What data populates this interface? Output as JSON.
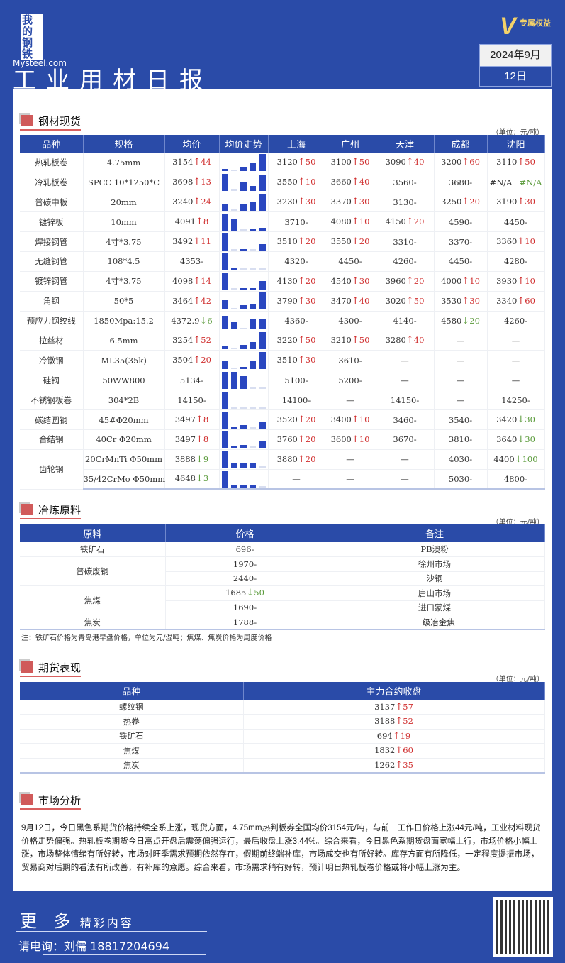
{
  "header": {
    "logo_cn": "我的钢铁",
    "logo_en": "Mysteel.com",
    "vip": "专属权益",
    "title": "工业用材日报",
    "month": "2024年9月",
    "day": "12日"
  },
  "colors": {
    "brand": "#2a4ba8",
    "up": "#d03030",
    "down": "#5a9a3a",
    "bar": "#2a47c0"
  },
  "steel": {
    "title": "钢材现货",
    "unit": "（单位：元/吨）",
    "headers": [
      "品种",
      "规格",
      "均价",
      "均价走势",
      "上海",
      "广州",
      "天津",
      "成都",
      "沈阳"
    ],
    "rows": [
      {
        "name": "热轧板卷",
        "spec": "4.75mm",
        "avg": {
          "v": "3154",
          "dir": "up",
          "d": "44"
        },
        "trend": [
          0.12,
          0.03,
          0.22,
          0.45,
          1
        ],
        "cities": [
          {
            "v": "3120",
            "dir": "up",
            "d": "50"
          },
          {
            "v": "3100",
            "dir": "up",
            "d": "50"
          },
          {
            "v": "3090",
            "dir": "up",
            "d": "40"
          },
          {
            "v": "3200",
            "dir": "up",
            "d": "60"
          },
          {
            "v": "3110",
            "dir": "up",
            "d": "50"
          }
        ]
      },
      {
        "name": "冷轧板卷",
        "spec": "SPCC 10*1250*C",
        "avg": {
          "v": "3698",
          "dir": "up",
          "d": "13"
        },
        "trend": [
          1,
          0.03,
          0.55,
          0.3,
          0.9
        ],
        "cities": [
          {
            "v": "3550",
            "dir": "up",
            "d": "10"
          },
          {
            "v": "3660",
            "dir": "up",
            "d": "40"
          },
          {
            "v": "3560",
            "dir": "flat",
            "d": "-"
          },
          {
            "v": "3680",
            "dir": "flat",
            "d": "-"
          },
          {
            "v": "#N/A",
            "dir": "na",
            "d": "#N/A"
          }
        ]
      },
      {
        "name": "普碳中板",
        "spec": "20mm",
        "avg": {
          "v": "3240",
          "dir": "up",
          "d": "24"
        },
        "trend": [
          0.35,
          0.03,
          0.35,
          0.5,
          1
        ],
        "cities": [
          {
            "v": "3230",
            "dir": "up",
            "d": "30"
          },
          {
            "v": "3370",
            "dir": "up",
            "d": "30"
          },
          {
            "v": "3130",
            "dir": "flat",
            "d": "-"
          },
          {
            "v": "3250",
            "dir": "up",
            "d": "20"
          },
          {
            "v": "3190",
            "dir": "up",
            "d": "30"
          }
        ]
      },
      {
        "name": "镀锌板",
        "spec": "10mm",
        "avg": {
          "v": "4091",
          "dir": "up",
          "d": "8"
        },
        "trend": [
          1,
          0.65,
          0.03,
          0.05,
          0.15
        ],
        "cities": [
          {
            "v": "3710",
            "dir": "flat",
            "d": "-"
          },
          {
            "v": "4080",
            "dir": "up",
            "d": "10"
          },
          {
            "v": "4150",
            "dir": "up",
            "d": "20"
          },
          {
            "v": "4590",
            "dir": "flat",
            "d": "-"
          },
          {
            "v": "4450",
            "dir": "flat",
            "d": "-"
          }
        ]
      },
      {
        "name": "焊接钢管",
        "spec": "4寸*3.75",
        "avg": {
          "v": "3492",
          "dir": "up",
          "d": "11"
        },
        "trend": [
          1,
          0.03,
          0.06,
          0.03,
          0.35
        ],
        "cities": [
          {
            "v": "3510",
            "dir": "up",
            "d": "20"
          },
          {
            "v": "3550",
            "dir": "up",
            "d": "20"
          },
          {
            "v": "3310",
            "dir": "flat",
            "d": "-"
          },
          {
            "v": "3370",
            "dir": "flat",
            "d": "-"
          },
          {
            "v": "3360",
            "dir": "up",
            "d": "10"
          }
        ]
      },
      {
        "name": "无缝钢管",
        "spec": "108*4.5",
        "avg": {
          "v": "4353",
          "dir": "flat",
          "d": "-"
        },
        "trend": [
          1,
          0.12,
          0.03,
          0.03,
          0.03
        ],
        "cities": [
          {
            "v": "4320",
            "dir": "flat",
            "d": "-"
          },
          {
            "v": "4450",
            "dir": "flat",
            "d": "-"
          },
          {
            "v": "4260",
            "dir": "flat",
            "d": "-"
          },
          {
            "v": "4450",
            "dir": "flat",
            "d": "-"
          },
          {
            "v": "4280",
            "dir": "flat",
            "d": "-"
          }
        ]
      },
      {
        "name": "镀锌钢管",
        "spec": "4寸*3.75",
        "avg": {
          "v": "4098",
          "dir": "up",
          "d": "14"
        },
        "trend": [
          1,
          0.03,
          0.08,
          0.1,
          0.5
        ],
        "cities": [
          {
            "v": "4130",
            "dir": "up",
            "d": "20"
          },
          {
            "v": "4540",
            "dir": "up",
            "d": "30"
          },
          {
            "v": "3960",
            "dir": "up",
            "d": "20"
          },
          {
            "v": "4000",
            "dir": "up",
            "d": "10"
          },
          {
            "v": "3930",
            "dir": "up",
            "d": "10"
          }
        ]
      },
      {
        "name": "角钢",
        "spec": "50*5",
        "avg": {
          "v": "3464",
          "dir": "up",
          "d": "42"
        },
        "trend": [
          0.55,
          0.03,
          0.25,
          0.3,
          1
        ],
        "cities": [
          {
            "v": "3790",
            "dir": "up",
            "d": "30"
          },
          {
            "v": "3470",
            "dir": "up",
            "d": "40"
          },
          {
            "v": "3020",
            "dir": "up",
            "d": "50"
          },
          {
            "v": "3530",
            "dir": "up",
            "d": "30"
          },
          {
            "v": "3340",
            "dir": "up",
            "d": "60"
          }
        ]
      },
      {
        "name": "预应力钢绞线",
        "spec": "1850Mpa:15.2",
        "avg": {
          "v": "4372.9",
          "dir": "down",
          "d": "6"
        },
        "trend": [
          0.8,
          0.4,
          0.03,
          0.6,
          0.6
        ],
        "cities": [
          {
            "v": "4360",
            "dir": "flat",
            "d": "-"
          },
          {
            "v": "4300",
            "dir": "flat",
            "d": "-"
          },
          {
            "v": "4140",
            "dir": "flat",
            "d": "-"
          },
          {
            "v": "4580",
            "dir": "down",
            "d": "20"
          },
          {
            "v": "4260",
            "dir": "flat",
            "d": "-"
          }
        ]
      },
      {
        "name": "拉丝材",
        "spec": "6.5mm",
        "avg": {
          "v": "3254",
          "dir": "up",
          "d": "52"
        },
        "trend": [
          0.15,
          0.03,
          0.25,
          0.42,
          1
        ],
        "cities": [
          {
            "v": "3220",
            "dir": "up",
            "d": "50"
          },
          {
            "v": "3210",
            "dir": "up",
            "d": "50"
          },
          {
            "v": "3280",
            "dir": "up",
            "d": "40"
          },
          {
            "v": "—",
            "dir": "none",
            "d": ""
          },
          {
            "v": "—",
            "dir": "none",
            "d": ""
          }
        ]
      },
      {
        "name": "冷镦钢",
        "spec": "ML35(35k)",
        "avg": {
          "v": "3504",
          "dir": "up",
          "d": "20"
        },
        "trend": [
          0.45,
          0.03,
          0.1,
          0.45,
          1
        ],
        "cities": [
          {
            "v": "3510",
            "dir": "up",
            "d": "30"
          },
          {
            "v": "3610",
            "dir": "flat",
            "d": "-"
          },
          {
            "v": "—",
            "dir": "none",
            "d": ""
          },
          {
            "v": "—",
            "dir": "none",
            "d": ""
          },
          {
            "v": "—",
            "dir": "none",
            "d": ""
          }
        ]
      },
      {
        "name": "硅钢",
        "spec": "50WW800",
        "avg": {
          "v": "5134",
          "dir": "flat",
          "d": "-"
        },
        "trend": [
          1,
          1,
          0.72,
          0.03,
          0.03
        ],
        "cities": [
          {
            "v": "5100",
            "dir": "flat",
            "d": "-"
          },
          {
            "v": "5200",
            "dir": "flat",
            "d": "-"
          },
          {
            "v": "—",
            "dir": "none",
            "d": ""
          },
          {
            "v": "—",
            "dir": "none",
            "d": ""
          },
          {
            "v": "—",
            "dir": "none",
            "d": ""
          }
        ]
      },
      {
        "name": "不锈钢板卷",
        "spec": "304*2B",
        "avg": {
          "v": "14150",
          "dir": "flat",
          "d": "-"
        },
        "trend": [
          1,
          0.03,
          0.03,
          0.03,
          0.03
        ],
        "cities": [
          {
            "v": "14100",
            "dir": "flat",
            "d": "-"
          },
          {
            "v": "—",
            "dir": "none",
            "d": ""
          },
          {
            "v": "14150",
            "dir": "flat",
            "d": "-"
          },
          {
            "v": "—",
            "dir": "none",
            "d": ""
          },
          {
            "v": "14250",
            "dir": "flat",
            "d": "-"
          }
        ]
      },
      {
        "name": "碳结圆钢",
        "spec": "45#Φ20mm",
        "avg": {
          "v": "3497",
          "dir": "up",
          "d": "8"
        },
        "trend": [
          1,
          0.1,
          0.18,
          0.03,
          0.35
        ],
        "cities": [
          {
            "v": "3520",
            "dir": "up",
            "d": "20"
          },
          {
            "v": "3400",
            "dir": "up",
            "d": "10"
          },
          {
            "v": "3460",
            "dir": "flat",
            "d": "-"
          },
          {
            "v": "3540",
            "dir": "flat",
            "d": "-"
          },
          {
            "v": "3420",
            "dir": "down",
            "d": "30"
          }
        ]
      },
      {
        "name": "合结钢",
        "spec": "40Cr Φ20mm",
        "avg": {
          "v": "3497",
          "dir": "up",
          "d": "8"
        },
        "trend": [
          1,
          0.1,
          0.18,
          0.03,
          0.38
        ],
        "cities": [
          {
            "v": "3760",
            "dir": "up",
            "d": "20"
          },
          {
            "v": "3600",
            "dir": "up",
            "d": "10"
          },
          {
            "v": "3670",
            "dir": "flat",
            "d": "-"
          },
          {
            "v": "3810",
            "dir": "flat",
            "d": "-"
          },
          {
            "v": "3640",
            "dir": "down",
            "d": "30"
          }
        ]
      },
      {
        "name": "齿轮钢",
        "span": 2,
        "spec": "20CrMnTi Φ50mm",
        "avg": {
          "v": "3888",
          "dir": "down",
          "d": "9"
        },
        "trend": [
          1,
          0.25,
          0.3,
          0.3,
          0.03
        ],
        "cities": [
          {
            "v": "3880",
            "dir": "up",
            "d": "20"
          },
          {
            "v": "—",
            "dir": "none",
            "d": ""
          },
          {
            "v": "—",
            "dir": "none",
            "d": ""
          },
          {
            "v": "4030",
            "dir": "flat",
            "d": "-"
          },
          {
            "v": "4400",
            "dir": "down",
            "d": "100"
          }
        ]
      },
      {
        "name": "",
        "skip": true,
        "spec": "35/42CrMo Φ50mm",
        "avg": {
          "v": "4648",
          "dir": "down",
          "d": "3"
        },
        "trend": [
          1,
          0.12,
          0.12,
          0.12,
          0.03
        ],
        "cities": [
          {
            "v": "—",
            "dir": "none",
            "d": ""
          },
          {
            "v": "—",
            "dir": "none",
            "d": ""
          },
          {
            "v": "—",
            "dir": "none",
            "d": ""
          },
          {
            "v": "5030",
            "dir": "flat",
            "d": "-"
          },
          {
            "v": "4800",
            "dir": "flat",
            "d": "-"
          }
        ]
      }
    ]
  },
  "raw": {
    "title": "冶炼原料",
    "unit": "（单位：元/吨）",
    "headers": [
      "原料",
      "价格",
      "备注"
    ],
    "rows": [
      {
        "name": "铁矿石",
        "span": 1,
        "price": {
          "v": "696",
          "dir": "flat",
          "d": "-"
        },
        "note": "PB澳粉"
      },
      {
        "name": "普碳废钢",
        "span": 2,
        "price": {
          "v": "1970",
          "dir": "flat",
          "d": "-"
        },
        "note": "徐州市场"
      },
      {
        "skip": true,
        "price": {
          "v": "2440",
          "dir": "flat",
          "d": "-"
        },
        "note": "沙钢"
      },
      {
        "name": "焦煤",
        "span": 2,
        "price": {
          "v": "1685",
          "dir": "down",
          "d": "50"
        },
        "note": "唐山市场"
      },
      {
        "skip": true,
        "price": {
          "v": "1690",
          "dir": "flat",
          "d": "-"
        },
        "note": "进口蒙煤"
      },
      {
        "name": "焦炭",
        "span": 1,
        "price": {
          "v": "1788",
          "dir": "flat",
          "d": "-"
        },
        "note": "一级冶金焦"
      }
    ],
    "footnote": "注：铁矿石价格为青岛港早盘价格，单位为元/湿吨；焦煤、焦炭价格为周度价格"
  },
  "futures": {
    "title": "期货表现",
    "unit": "（单位：元/吨）",
    "headers": [
      "品种",
      "主力合约收盘"
    ],
    "rows": [
      {
        "name": "螺纹钢",
        "price": {
          "v": "3137",
          "dir": "up",
          "d": "57"
        }
      },
      {
        "name": "热卷",
        "price": {
          "v": "3188",
          "dir": "up",
          "d": "52"
        }
      },
      {
        "name": "铁矿石",
        "price": {
          "v": "694",
          "dir": "up",
          "d": "19"
        }
      },
      {
        "name": "焦煤",
        "price": {
          "v": "1832",
          "dir": "up",
          "d": "60"
        }
      },
      {
        "name": "焦炭",
        "price": {
          "v": "1262",
          "dir": "up",
          "d": "35"
        }
      }
    ]
  },
  "analysis": {
    "title": "市场分析",
    "text": "9月12日，今日黑色系期货价格持续全系上涨，现货方面，4.75mm热判板券全国均价3154元/吨，与前一工作日价格上涨44元/吨，工业材料现货价格走势偏强。热轧板卷期货今日高点开盘后震荡偏强运行，最后收盘上涨3.44%。综合来看，今日黑色系期货盘面宽幅上行，市场价格小幅上涨，市场整体情绪有所好转，市场对旺季需求预期依然存在，假期前终端补库，市场成交也有所好转。库存方面有所降低，一定程度提振市场，贸易商对后期的看法有所改善，有补库的意愿。综合来看，市场需求稍有好转，预计明日热轧板卷价格或将小幅上涨为主。"
  },
  "footer": {
    "more_big": "更 多",
    "more_small": "精彩内容",
    "contact": "请电询：刘儒 18817204694",
    "qr_icon": "qr-code"
  }
}
